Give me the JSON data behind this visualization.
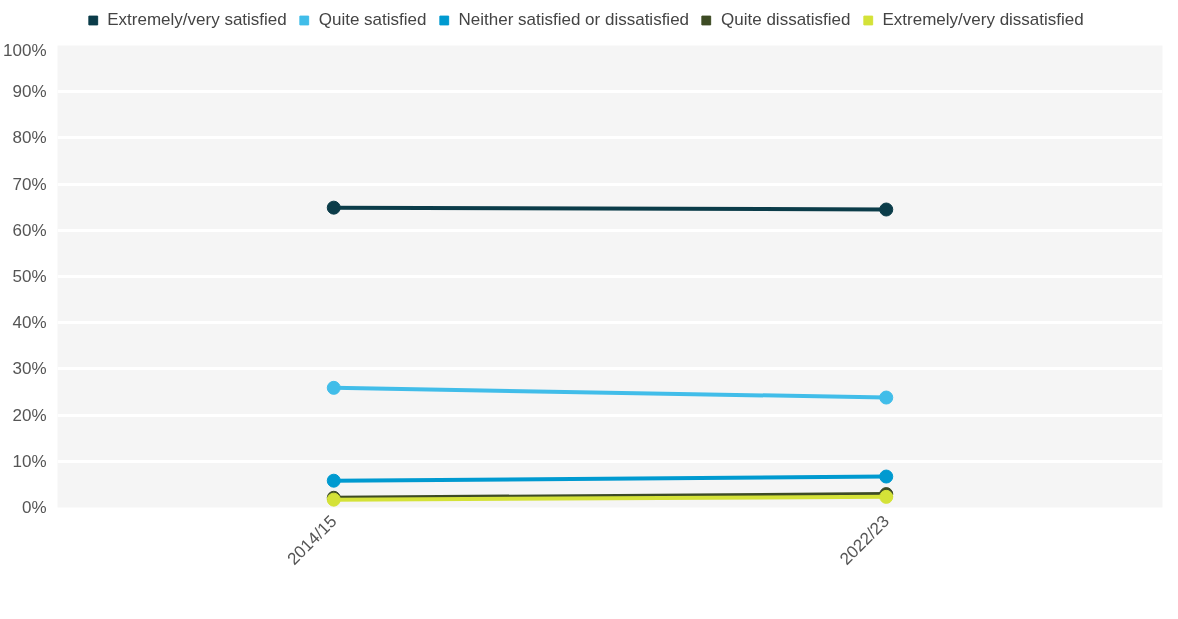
{
  "chart_data": {
    "type": "line",
    "categories": [
      "2014/15",
      "2022/23"
    ],
    "series": [
      {
        "name": "Extremely/very satisfied",
        "color": "#0b3c49",
        "values": [
          64.9,
          64.5
        ]
      },
      {
        "name": "Quite satisfied",
        "color": "#41bde9",
        "values": [
          25.9,
          23.8
        ]
      },
      {
        "name": "Neither satisfied or dissatisfied",
        "color": "#009ad0",
        "values": [
          5.8,
          6.7
        ]
      },
      {
        "name": "Quite dissatisfied",
        "color": "#3d4b24",
        "values": [
          2.1,
          2.9
        ]
      },
      {
        "name": "Extremely/very dissatisfied",
        "color": "#d4e238",
        "values": [
          1.7,
          2.3
        ]
      }
    ],
    "ylim": [
      0,
      100
    ],
    "yticks": [
      {
        "value": 0,
        "label": "0%"
      },
      {
        "value": 10,
        "label": "10%"
      },
      {
        "value": 20,
        "label": "20%"
      },
      {
        "value": 30,
        "label": "30%"
      },
      {
        "value": 40,
        "label": "40%"
      },
      {
        "value": 50,
        "label": "50%"
      },
      {
        "value": 60,
        "label": "60%"
      },
      {
        "value": 70,
        "label": "70%"
      },
      {
        "value": 80,
        "label": "80%"
      },
      {
        "value": 90,
        "label": "90%"
      },
      {
        "value": 100,
        "label": "100%"
      }
    ],
    "grid": "y",
    "legend": "top",
    "marker": "circle",
    "line_style": "solid"
  }
}
